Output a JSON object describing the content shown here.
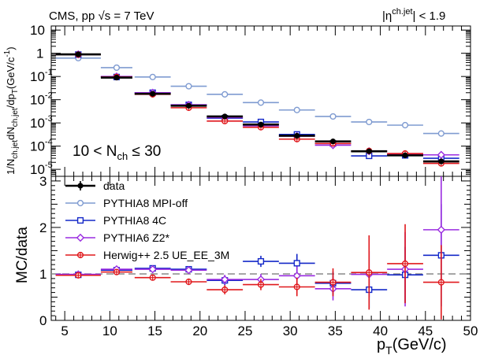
{
  "header": {
    "experiment_left": "CMS, pp ",
    "sqrt_s": "√s",
    "energy": " = 7 TeV",
    "eta_cut_left": "|η",
    "eta_cut_sup": "ch.jet",
    "eta_cut_right": "| < 1.9"
  },
  "chart_data": [
    {
      "type": "scatter",
      "panel": "top",
      "ylabel_parts": [
        "1/N",
        "ch.jet",
        "dN",
        "ch.jet",
        "/dp",
        "T",
        "(GeV/c",
        "-1",
        ")"
      ],
      "annotation": {
        "prefix": "10 < N",
        "sub": "ch",
        "suffix": " ≤ 30"
      },
      "yscale": "log",
      "ylim": [
        5e-06,
        15
      ],
      "ytick_labels": [
        {
          "v": 10,
          "base": "10",
          "exp": ""
        },
        {
          "v": 1,
          "base": "1",
          "exp": ""
        },
        {
          "v": 0.1,
          "base": "10",
          "exp": "-1"
        },
        {
          "v": 0.01,
          "base": "10",
          "exp": "-2"
        },
        {
          "v": 0.001,
          "base": "10",
          "exp": "-3"
        },
        {
          "v": 0.0001,
          "base": "10",
          "exp": "-4"
        },
        {
          "v": 1e-05,
          "base": "10",
          "exp": "-5"
        }
      ],
      "x": [
        6.5,
        10.75,
        14.75,
        18.75,
        22.75,
        26.75,
        30.75,
        34.75,
        38.75,
        42.75,
        46.75
      ],
      "xerr": [
        2.5,
        1.75,
        2.0,
        2.0,
        2.0,
        2.0,
        2.0,
        2.0,
        2.0,
        2.0,
        2.0
      ],
      "series": [
        {
          "name": "data",
          "key": "data",
          "color": "#000000",
          "values": [
            0.9,
            0.09,
            0.018,
            0.0055,
            0.0019,
            0.00085,
            0.00028,
            0.00016,
            6e-05,
            4e-05,
            2.2e-05
          ]
        },
        {
          "name": "PYTHIA8 MPI-off",
          "key": "mpioff",
          "color": "#7f9bd1",
          "values": [
            0.62,
            0.24,
            0.095,
            0.038,
            0.017,
            0.0075,
            0.0036,
            0.0019,
            0.0011,
            0.0008,
            0.00035
          ]
        },
        {
          "name": "PYTHIA8 4C",
          "key": "p8_4c",
          "color": "#1428c8",
          "values": [
            0.88,
            0.095,
            0.02,
            0.006,
            0.0016,
            0.0011,
            0.00032,
            0.00013,
            3.8e-05,
            4e-05,
            3e-05
          ]
        },
        {
          "name": "PYTHIA6 Z2*",
          "key": "p6_z2",
          "color": "#9a2be0",
          "values": [
            0.9,
            0.1,
            0.02,
            0.006,
            0.0017,
            0.00075,
            0.00027,
            0.00011,
            6e-05,
            4.5e-05,
            4.2e-05
          ]
        },
        {
          "name": "Herwig++ 2.5  UE_EE_3M",
          "key": "herwig",
          "color": "#e0181c",
          "values": [
            0.88,
            0.095,
            0.017,
            0.0045,
            0.0012,
            0.00065,
            0.0002,
            0.00013,
            6.2e-05,
            4.8e-05,
            1.8e-05
          ]
        }
      ]
    },
    {
      "type": "scatter",
      "panel": "bottom",
      "ylabel": "MC/data",
      "xlabel_parts": [
        "p",
        "T",
        "(GeV/c)"
      ],
      "xlim": [
        3.5,
        50
      ],
      "ylim": [
        0,
        3.1
      ],
      "xticks": [
        5,
        10,
        15,
        20,
        25,
        30,
        35,
        40,
        45,
        50
      ],
      "yticks": [
        0,
        1,
        2,
        3
      ],
      "reference_line": 1,
      "x": [
        6.5,
        10.75,
        14.75,
        18.75,
        22.75,
        26.75,
        30.75,
        34.75,
        38.75,
        42.75,
        46.75
      ],
      "xerr": [
        2.5,
        1.75,
        2.0,
        2.0,
        2.0,
        2.0,
        2.0,
        2.0,
        2.0,
        2.0,
        2.0
      ],
      "series": [
        {
          "name": "PYTHIA8 4C",
          "key": "p8_4c",
          "color": "#1428c8",
          "values": [
            0.98,
            1.08,
            1.12,
            1.1,
            0.86,
            1.27,
            1.23,
            0.8,
            0.66,
            0.98,
            1.4
          ],
          "yerr": [
            0.02,
            0.03,
            0.05,
            0.06,
            0.1,
            0.12,
            0.2,
            0.25,
            0.4,
            0.6,
            1.1
          ]
        },
        {
          "name": "PYTHIA6 Z2*",
          "key": "p6_z2",
          "color": "#9a2be0",
          "values": [
            0.99,
            1.1,
            1.1,
            1.08,
            0.88,
            0.88,
            0.96,
            0.68,
            0.99,
            1.1,
            1.95
          ],
          "yerr": [
            0.02,
            0.03,
            0.05,
            0.06,
            0.1,
            0.12,
            0.2,
            0.25,
            0.5,
            0.8,
            1.3
          ]
        },
        {
          "name": "Herwig++ 2.5  UE_EE_3M",
          "key": "herwig",
          "color": "#e0181c",
          "values": [
            0.97,
            1.04,
            0.92,
            0.83,
            0.66,
            0.77,
            0.72,
            0.82,
            1.03,
            1.22,
            0.82
          ],
          "yerr": [
            0.02,
            0.03,
            0.05,
            0.07,
            0.1,
            0.12,
            0.2,
            0.3,
            0.8,
            0.85,
            0.8
          ]
        }
      ]
    }
  ],
  "legend": [
    {
      "label": "data",
      "key": "data",
      "color": "#000000"
    },
    {
      "label": "PYTHIA8 MPI-off",
      "key": "mpioff",
      "color": "#7f9bd1"
    },
    {
      "label": "PYTHIA8 4C",
      "key": "p8_4c",
      "color": "#1428c8"
    },
    {
      "label": "PYTHIA6 Z2*",
      "key": "p6_z2",
      "color": "#9a2be0"
    },
    {
      "label": "Herwig++ 2.5  UE_EE_3M",
      "key": "herwig",
      "color": "#e0181c"
    }
  ]
}
